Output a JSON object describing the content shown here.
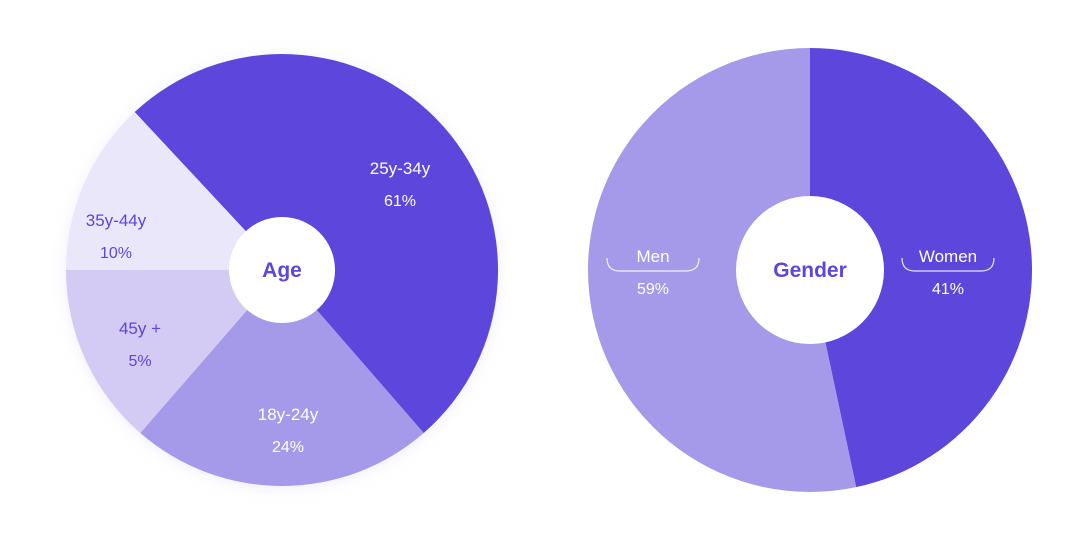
{
  "colors": {
    "dark": "#5c46dc",
    "medium": "#a599ea",
    "light": "#d3cbf4",
    "lighter": "#ebe7fb",
    "label_on_dark": "#ffffff",
    "label_on_light": "#5c46dc"
  },
  "chart_data": [
    {
      "type": "pie",
      "title": "Age",
      "slices": [
        {
          "label": "25y-34y",
          "value": 61,
          "display": "61%",
          "color": "#5c46dc",
          "text_color": "#ffffff"
        },
        {
          "label": "18y-24y",
          "value": 24,
          "display": "24%",
          "color": "#a599ea",
          "text_color": "#ffffff"
        },
        {
          "label": "45y +",
          "value": 5,
          "display": "5%",
          "color": "#d3cbf4",
          "text_color": "#5c46dc"
        },
        {
          "label": "35y-44y",
          "value": 10,
          "display": "10%",
          "color": "#ebe7fb",
          "text_color": "#5c46dc"
        }
      ]
    },
    {
      "type": "pie",
      "title": "Gender",
      "slices": [
        {
          "label": "Women",
          "value": 41,
          "display": "41%",
          "color": "#5c46dc",
          "text_color": "#ffffff"
        },
        {
          "label": "Men",
          "value": 59,
          "display": "59%",
          "color": "#a599ea",
          "text_color": "#ffffff"
        }
      ]
    }
  ]
}
